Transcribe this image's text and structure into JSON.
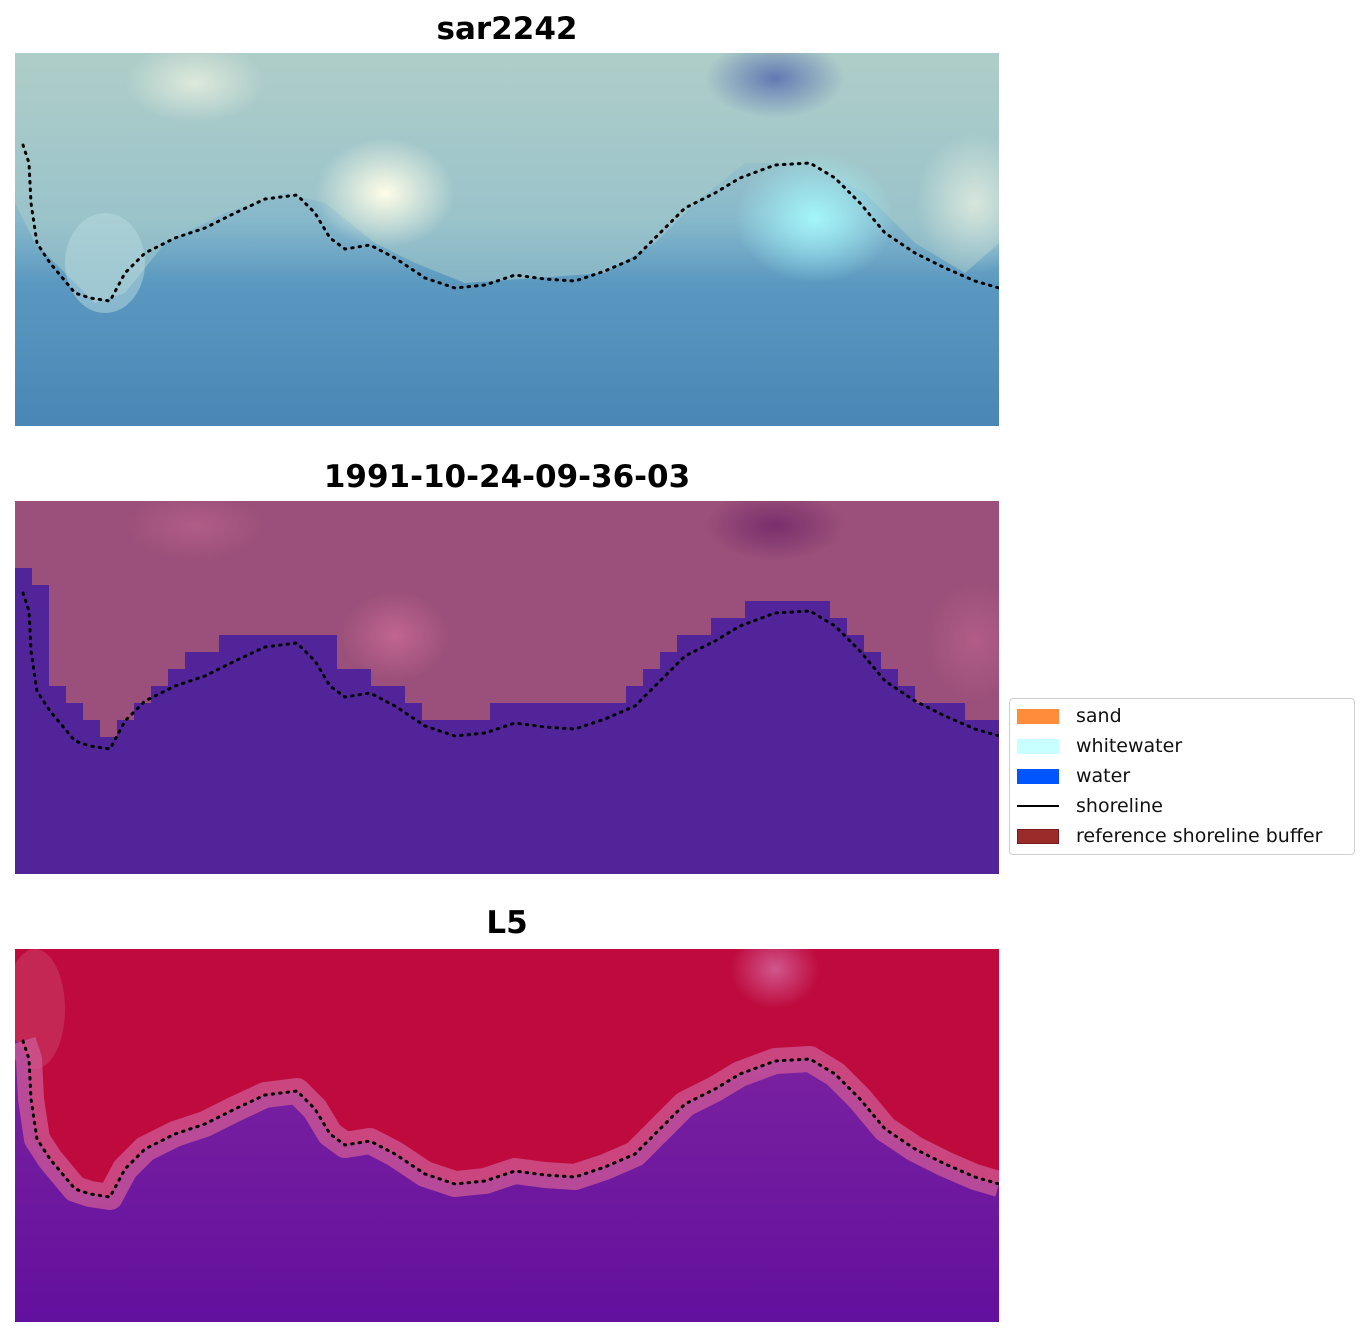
{
  "panels": [
    {
      "title": "sar2242",
      "kind": "rgb"
    },
    {
      "title": "1991-10-24-09-36-03",
      "kind": "classified"
    },
    {
      "title": "L5",
      "kind": "probability"
    }
  ],
  "legend": {
    "items": [
      {
        "label": "sand",
        "color": "#ff8c3a",
        "type": "patch"
      },
      {
        "label": "whitewater",
        "color": "#c8ffff",
        "type": "patch"
      },
      {
        "label": "water",
        "color": "#0055ff",
        "type": "patch"
      },
      {
        "label": "shoreline",
        "color": "#000000",
        "type": "line"
      },
      {
        "label": "reference shoreline buffer",
        "color": "#9b2a2a",
        "type": "patch"
      }
    ]
  },
  "colors": {
    "water_class": "#51249a",
    "land_class": "#9a507a",
    "prob_high": "#be0a3c",
    "prob_low": "#6a16a0",
    "shoreline_dots": "#000000"
  }
}
